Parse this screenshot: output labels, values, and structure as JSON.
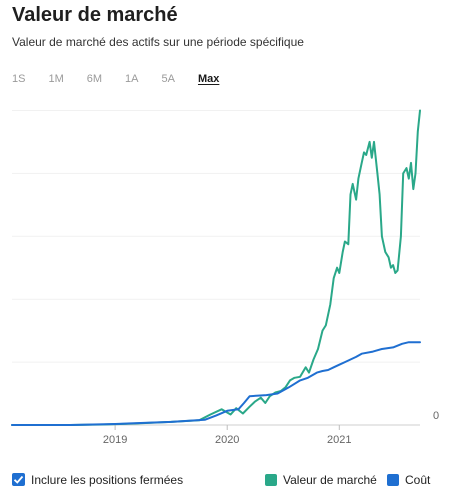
{
  "header": {
    "title": "Valeur de marché",
    "subtitle": "Valeur de marché des actifs sur une période spécifique"
  },
  "ranges": [
    {
      "label": "1S",
      "active": false
    },
    {
      "label": "1M",
      "active": false
    },
    {
      "label": "6M",
      "active": false
    },
    {
      "label": "1A",
      "active": false
    },
    {
      "label": "5A",
      "active": false
    },
    {
      "label": "Max",
      "active": true
    }
  ],
  "footer": {
    "checkbox_label": "Inclure les positions fermées",
    "checkbox_checked": true,
    "legend": [
      {
        "label": "Valeur de marché",
        "color": "#2aa889"
      },
      {
        "label": "Coût",
        "color": "#1f6fd1"
      }
    ]
  },
  "chart_data": {
    "type": "line",
    "x_ticks": [
      "2019",
      "2020",
      "2021"
    ],
    "y_tick_label": "0",
    "grid": true,
    "legend_position": "bottom-right",
    "x_range": [
      2018.08,
      2021.72
    ],
    "y_range": [
      0,
      6.2
    ],
    "series": [
      {
        "name": "Valeur de marché",
        "color": "#2aa889",
        "points": [
          [
            2018.08,
            0
          ],
          [
            2018.6,
            0
          ],
          [
            2018.9,
            0.01
          ],
          [
            2019.2,
            0.03
          ],
          [
            2019.5,
            0.06
          ],
          [
            2019.75,
            0.09
          ],
          [
            2019.85,
            0.2
          ],
          [
            2019.95,
            0.3
          ],
          [
            2020.03,
            0.2
          ],
          [
            2020.08,
            0.32
          ],
          [
            2020.14,
            0.22
          ],
          [
            2020.2,
            0.35
          ],
          [
            2020.25,
            0.45
          ],
          [
            2020.3,
            0.52
          ],
          [
            2020.34,
            0.42
          ],
          [
            2020.38,
            0.55
          ],
          [
            2020.43,
            0.62
          ],
          [
            2020.48,
            0.65
          ],
          [
            2020.52,
            0.72
          ],
          [
            2020.56,
            0.85
          ],
          [
            2020.6,
            0.9
          ],
          [
            2020.65,
            0.92
          ],
          [
            2020.7,
            1.1
          ],
          [
            2020.73,
            1.0
          ],
          [
            2020.77,
            1.25
          ],
          [
            2020.81,
            1.45
          ],
          [
            2020.85,
            1.8
          ],
          [
            2020.88,
            1.9
          ],
          [
            2020.92,
            2.3
          ],
          [
            2020.95,
            2.8
          ],
          [
            2020.98,
            3.0
          ],
          [
            2021.0,
            2.9
          ],
          [
            2021.03,
            3.3
          ],
          [
            2021.05,
            3.5
          ],
          [
            2021.08,
            3.45
          ],
          [
            2021.1,
            4.4
          ],
          [
            2021.12,
            4.6
          ],
          [
            2021.15,
            4.3
          ],
          [
            2021.17,
            4.7
          ],
          [
            2021.2,
            5.0
          ],
          [
            2021.22,
            5.2
          ],
          [
            2021.24,
            5.15
          ],
          [
            2021.27,
            5.4
          ],
          [
            2021.29,
            5.1
          ],
          [
            2021.31,
            5.4
          ],
          [
            2021.34,
            4.8
          ],
          [
            2021.36,
            4.4
          ],
          [
            2021.38,
            3.6
          ],
          [
            2021.41,
            3.3
          ],
          [
            2021.44,
            3.2
          ],
          [
            2021.46,
            3.0
          ],
          [
            2021.48,
            3.05
          ],
          [
            2021.5,
            2.9
          ],
          [
            2021.52,
            2.95
          ],
          [
            2021.55,
            3.6
          ],
          [
            2021.57,
            4.8
          ],
          [
            2021.6,
            4.9
          ],
          [
            2021.62,
            4.7
          ],
          [
            2021.64,
            5.0
          ],
          [
            2021.66,
            4.5
          ],
          [
            2021.68,
            4.8
          ],
          [
            2021.7,
            5.6
          ],
          [
            2021.72,
            6.0
          ]
        ]
      },
      {
        "name": "Coût",
        "color": "#1f6fd1",
        "points": [
          [
            2018.08,
            0
          ],
          [
            2018.6,
            0
          ],
          [
            2019.0,
            0.02
          ],
          [
            2019.5,
            0.06
          ],
          [
            2019.8,
            0.1
          ],
          [
            2019.9,
            0.18
          ],
          [
            2020.0,
            0.27
          ],
          [
            2020.1,
            0.3
          ],
          [
            2020.15,
            0.42
          ],
          [
            2020.2,
            0.55
          ],
          [
            2020.35,
            0.57
          ],
          [
            2020.45,
            0.6
          ],
          [
            2020.55,
            0.72
          ],
          [
            2020.65,
            0.85
          ],
          [
            2020.72,
            0.9
          ],
          [
            2020.8,
            1.0
          ],
          [
            2020.85,
            1.03
          ],
          [
            2020.9,
            1.05
          ],
          [
            2020.95,
            1.1
          ],
          [
            2021.0,
            1.15
          ],
          [
            2021.05,
            1.2
          ],
          [
            2021.1,
            1.25
          ],
          [
            2021.15,
            1.3
          ],
          [
            2021.2,
            1.36
          ],
          [
            2021.3,
            1.4
          ],
          [
            2021.38,
            1.45
          ],
          [
            2021.48,
            1.48
          ],
          [
            2021.56,
            1.55
          ],
          [
            2021.62,
            1.58
          ],
          [
            2021.72,
            1.58
          ]
        ]
      }
    ]
  }
}
